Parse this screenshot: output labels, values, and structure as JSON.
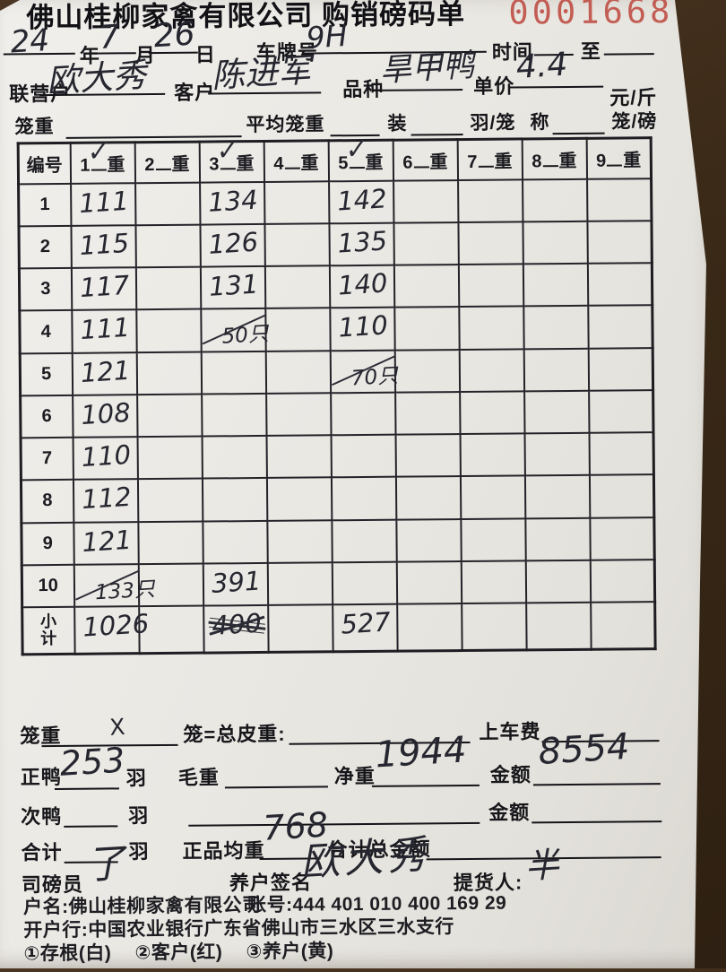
{
  "document": {
    "title": "佛山桂柳家禽有限公司 购销磅码单",
    "serial": "0001668"
  },
  "head": {
    "year_value": "24",
    "year_label": "年",
    "month_value": "7",
    "month_label": "月",
    "day_value": "26",
    "day_label": "日",
    "plate_label": "车牌号",
    "plate_value": "9H",
    "time_label": "时间",
    "to_label": "至",
    "partner_label": "联营户",
    "partner_value": "欧大秀",
    "customer_label": "客户",
    "customer_value": "陈进军",
    "breed_label": "品种",
    "breed_value": "旱甲鸭",
    "price_label": "单价",
    "price_value": "4.4",
    "price_unit": "元/斤",
    "cage_weight_label": "笼重",
    "avg_cage_label": "平均笼重",
    "pack_label": "装",
    "per_cage_unit": "羽/笼",
    "scale_label": "称",
    "cage_per_scale_unit": "笼/磅"
  },
  "table": {
    "corner_label": "编号",
    "weight_char": "重",
    "column_numbers": [
      "1",
      "2",
      "3",
      "4",
      "5",
      "6",
      "7",
      "8",
      "9"
    ],
    "checked_columns": [
      1,
      3,
      5
    ],
    "rows": [
      {
        "label": "1",
        "values": [
          "111",
          "",
          "134",
          "",
          "142",
          "",
          "",
          "",
          ""
        ]
      },
      {
        "label": "2",
        "values": [
          "115",
          "",
          "126",
          "",
          "135",
          "",
          "",
          "",
          ""
        ]
      },
      {
        "label": "3",
        "values": [
          "117",
          "",
          "131",
          "",
          "140",
          "",
          "",
          "",
          ""
        ]
      },
      {
        "label": "4",
        "values": [
          "111",
          "",
          {
            "text": "50只",
            "slash": true
          },
          "",
          "110",
          "",
          "",
          "",
          ""
        ]
      },
      {
        "label": "5",
        "values": [
          "121",
          "",
          "",
          "",
          {
            "text": "70只",
            "slash": true
          },
          "",
          "",
          "",
          ""
        ]
      },
      {
        "label": "6",
        "values": [
          "108",
          "",
          "",
          "",
          "",
          "",
          "",
          "",
          ""
        ]
      },
      {
        "label": "7",
        "values": [
          "110",
          "",
          "",
          "",
          "",
          "",
          "",
          "",
          ""
        ]
      },
      {
        "label": "8",
        "values": [
          "112",
          "",
          "",
          "",
          "",
          "",
          "",
          "",
          ""
        ]
      },
      {
        "label": "9",
        "values": [
          "121",
          "",
          "",
          "",
          "",
          "",
          "",
          "",
          ""
        ]
      },
      {
        "label": "10",
        "values": [
          {
            "text": "133只",
            "slash": true
          },
          "",
          "391",
          "",
          "",
          "",
          "",
          "",
          ""
        ]
      },
      {
        "label": "小计",
        "subtotal": true,
        "values": [
          "1026",
          "",
          {
            "text": "400",
            "scribble": true
          },
          "",
          "527",
          "",
          "",
          "",
          ""
        ]
      }
    ]
  },
  "summary": {
    "cage_weight_label": "笼重",
    "x_value": "X",
    "tare_label": "笼=总皮重:",
    "truck_fee_label": "上车费",
    "good_duck_label": "正鸭",
    "good_duck_count": "253",
    "bird_unit": "羽",
    "gross_label": "毛重",
    "net_label": "净重",
    "net_value": "1944",
    "amount_label": "金额",
    "amount_value": "8554",
    "second_duck_label": "次鸭",
    "bird_unit2": "羽",
    "amount2_label": "金额",
    "total_label": "合计",
    "bird_unit3": "羽",
    "avg_weight_label": "正品均重",
    "avg_weight_value": "768",
    "grand_total_label": "合计总金额",
    "weigher_label": "司磅员",
    "weigher_signature": "了",
    "farmer_sign_label": "养户签名",
    "farmer_signature": "欧大秀",
    "picker_label": "提货人:",
    "picker_signature": "半"
  },
  "footer": {
    "account_name": "户名:佛山桂柳家禽有限公司",
    "account_number": "账号:444 401 010 400 169 29",
    "bank_line": "开户行:中国农业银行广东省佛山市三水区三水支行",
    "copy1": "①存根(白)",
    "copy2": "②客户(红)",
    "copy3": "③养户(黄)"
  },
  "colors": {
    "serial_red": "#bf4f45",
    "ink": "#25262f",
    "print_black": "#17171b",
    "paper": "#eae8e3",
    "background_wood": "#3a2917"
  }
}
